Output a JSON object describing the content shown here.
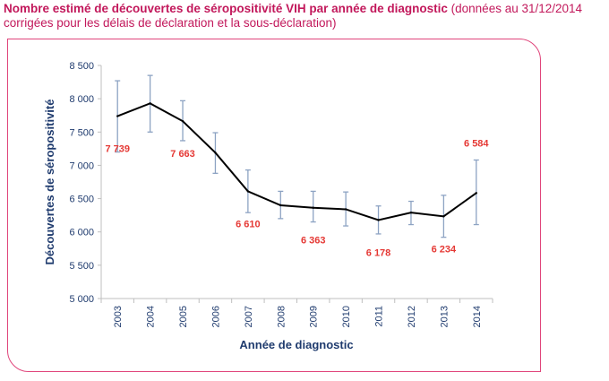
{
  "header": {
    "title_bold": "Nombre estimé de découvertes de séropositivité VIH par année de diagnostic",
    "title_rest": " (données au 31/12/2014 corrigées pour les délais de déclaration et la sous-déclaration)"
  },
  "chart_data": {
    "type": "line",
    "title": "Nombre estimé de découvertes de séropositivité VIH par année de diagnostic (données au 31/12/2014 corrigées pour les délais de déclaration et la sous-déclaration)",
    "xlabel": "Année de diagnostic",
    "ylabel": "Découvertes de séropositivité",
    "categories": [
      "2003",
      "2004",
      "2005",
      "2006",
      "2007",
      "2008",
      "2009",
      "2010",
      "2011",
      "2012",
      "2013",
      "2014"
    ],
    "values": [
      7739,
      7930,
      7663,
      7190,
      6610,
      6400,
      6363,
      6340,
      6178,
      6290,
      6234,
      6584
    ],
    "error_low": [
      7200,
      7500,
      7370,
      6880,
      6290,
      6200,
      6150,
      6090,
      5970,
      6110,
      5920,
      6110
    ],
    "error_high": [
      8270,
      8350,
      7970,
      7490,
      6930,
      6610,
      6610,
      6600,
      6390,
      6460,
      6550,
      7080
    ],
    "ylim": [
      5000,
      8500
    ],
    "yticks": [
      5000,
      5500,
      6000,
      6500,
      7000,
      7500,
      8000,
      8500
    ],
    "ytick_labels": [
      "5 000",
      "5 500",
      "6 000",
      "6 500",
      "7 000",
      "7 500",
      "8 000",
      "8 500"
    ],
    "data_labels": [
      {
        "index": 0,
        "text": "7 739",
        "pos": "below"
      },
      {
        "index": 2,
        "text": "7 663",
        "pos": "below"
      },
      {
        "index": 4,
        "text": "6 610",
        "pos": "below"
      },
      {
        "index": 6,
        "text": "6 363",
        "pos": "below"
      },
      {
        "index": 8,
        "text": "6 178",
        "pos": "below"
      },
      {
        "index": 10,
        "text": "6 234",
        "pos": "below"
      },
      {
        "index": 11,
        "text": "6 584",
        "pos": "above"
      }
    ],
    "colors": {
      "line": "#000000",
      "error_bar": "#8da3c3",
      "label": "#e53935",
      "axis": "#1f3b6e",
      "grid": "#bfbfbf"
    }
  }
}
